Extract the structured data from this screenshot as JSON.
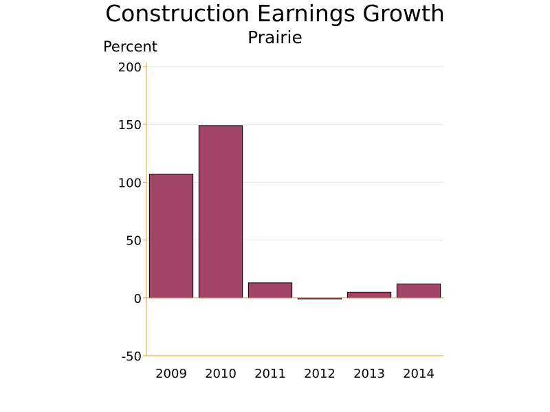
{
  "chart_data": {
    "type": "bar",
    "title": "Construction Earnings Growth",
    "subtitle": "Prairie",
    "ylabel": "Percent",
    "xlabel": "",
    "categories": [
      "2009",
      "2010",
      "2011",
      "2012",
      "2013",
      "2014"
    ],
    "values": [
      107,
      149,
      13,
      -1,
      5,
      12
    ],
    "ylim": [
      -50,
      200
    ],
    "yticks": [
      -50,
      0,
      50,
      100,
      150,
      200
    ],
    "grid": true,
    "colors": {
      "bar": "#A04468",
      "bar_edge": "#000000",
      "axis": "#E8A317",
      "grid": "#E6E6E6"
    }
  }
}
